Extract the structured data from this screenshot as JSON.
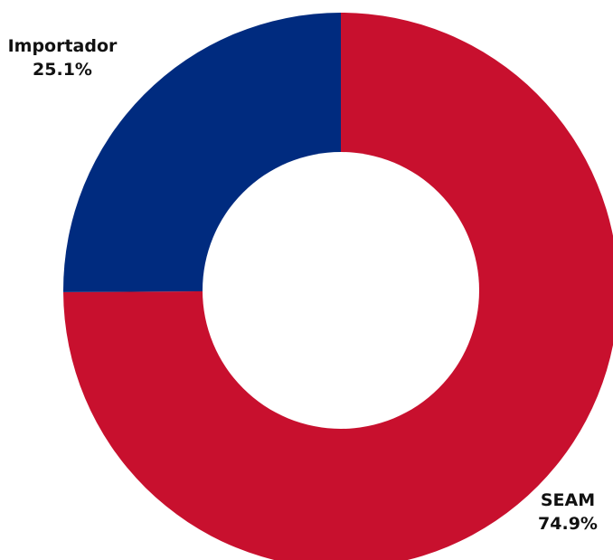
{
  "chart_data": {
    "type": "pie",
    "variant": "donut",
    "title": "",
    "legend": "none",
    "series": [
      {
        "name": "",
        "slices": [
          {
            "label": "SEAM",
            "value": 74.9,
            "value_label": "74.9%",
            "color": "#C8102E"
          },
          {
            "label": "Importador",
            "value": 25.1,
            "value_label": "25.1%",
            "color": "#002B7F"
          }
        ]
      }
    ],
    "start_angle_deg": 0,
    "direction": "clockwise"
  }
}
